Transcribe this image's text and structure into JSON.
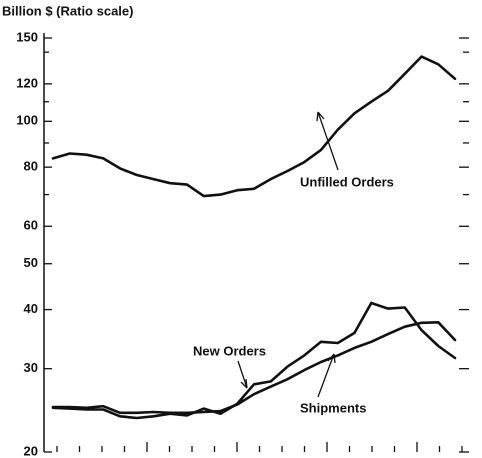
{
  "chart_data": {
    "type": "line",
    "y_axis_label": "Billion $ (Ratio scale)",
    "log_scale": true,
    "ylim": [
      20,
      150
    ],
    "yticks": [
      20,
      30,
      40,
      50,
      60,
      80,
      100,
      120,
      150
    ],
    "yticks_minor": [
      70,
      90,
      110,
      140
    ],
    "categories": [
      null,
      null,
      null,
      null,
      null,
      null,
      null,
      null,
      null,
      null,
      null,
      null,
      null,
      null,
      null,
      null,
      null,
      null,
      null,
      null,
      null,
      null,
      null,
      null,
      null
    ],
    "series": [
      {
        "name": "Unfilled Orders",
        "color": "#111111",
        "values": [
          83.5,
          85.5,
          85,
          83.5,
          79.5,
          77,
          75.5,
          74,
          73.5,
          69.5,
          70,
          71.5,
          72,
          75.5,
          78.5,
          82,
          87,
          96,
          104,
          110,
          116,
          126,
          137,
          132,
          123
        ]
      },
      {
        "name": "New Orders",
        "color": "#111111",
        "values": [
          24.8,
          24.7,
          24.6,
          24.6,
          23.8,
          23.6,
          23.8,
          24.1,
          23.9,
          24.7,
          24.1,
          25.3,
          27.8,
          28.2,
          30.3,
          32,
          34.2,
          34,
          35.7,
          41.3,
          40.2,
          40.4,
          36.2,
          33.5,
          31.6
        ]
      },
      {
        "name": "Shipments",
        "color": "#111111",
        "values": [
          24.9,
          24.9,
          24.8,
          25.0,
          24.2,
          24.2,
          24.3,
          24.2,
          24.2,
          24.3,
          24.4,
          25.2,
          26.5,
          27.5,
          28.5,
          29.8,
          31,
          32,
          33.2,
          34.2,
          35.5,
          36.8,
          37.5,
          37.6,
          34.5
        ]
      }
    ]
  }
}
